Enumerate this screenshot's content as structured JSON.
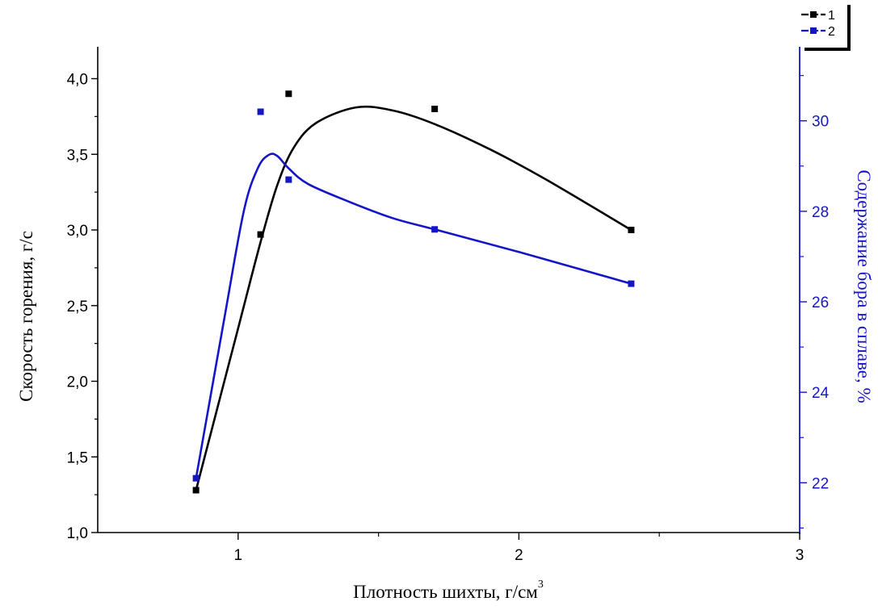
{
  "chart_data": {
    "type": "line",
    "x_title": "Плотность шихты, г/см",
    "x_title_sup": "3",
    "y_title": "Скорость горения, г/с",
    "y2_title": "Содержание бора в сплаве, %",
    "xlim": [
      0.5,
      3
    ],
    "ylim": [
      1.0,
      4.2
    ],
    "y2lim": [
      20.9,
      31.6
    ],
    "x_ticks": [
      1,
      2,
      3
    ],
    "x_tick_labels": [
      "1",
      "2",
      "3"
    ],
    "y_ticks": [
      1.0,
      1.5,
      2.0,
      2.5,
      3.0,
      3.5,
      4.0
    ],
    "y_tick_labels": [
      "1,0",
      "1,5",
      "2,0",
      "2,5",
      "3,0",
      "3,5",
      "4,0"
    ],
    "y2_ticks": [
      22,
      24,
      26,
      28,
      30
    ],
    "y2_tick_labels": [
      "22",
      "24",
      "26",
      "28",
      "30"
    ],
    "legend_position": "top-right",
    "series": [
      {
        "name": "1",
        "axis": "left",
        "color": "#000000",
        "marker": "square",
        "points": [
          {
            "x": 0.85,
            "y": 1.28
          },
          {
            "x": 1.08,
            "y": 2.97
          },
          {
            "x": 1.18,
            "y": 3.9
          },
          {
            "x": 1.7,
            "y": 3.8
          },
          {
            "x": 2.4,
            "y": 3.0
          }
        ],
        "curve": [
          {
            "x": 0.85,
            "y": 1.28
          },
          {
            "x": 1.0,
            "y": 2.35
          },
          {
            "x": 1.08,
            "y": 2.92
          },
          {
            "x": 1.14,
            "y": 3.3
          },
          {
            "x": 1.2,
            "y": 3.55
          },
          {
            "x": 1.28,
            "y": 3.71
          },
          {
            "x": 1.42,
            "y": 3.81
          },
          {
            "x": 1.55,
            "y": 3.79
          },
          {
            "x": 1.7,
            "y": 3.7
          },
          {
            "x": 1.9,
            "y": 3.53
          },
          {
            "x": 2.1,
            "y": 3.33
          },
          {
            "x": 2.4,
            "y": 3.0
          }
        ]
      },
      {
        "name": "2",
        "axis": "right",
        "color": "#1515c8",
        "marker": "square",
        "points": [
          {
            "x": 0.85,
            "y": 22.1
          },
          {
            "x": 1.08,
            "y": 30.2
          },
          {
            "x": 1.18,
            "y": 28.7
          },
          {
            "x": 1.7,
            "y": 27.6
          },
          {
            "x": 2.4,
            "y": 26.4
          }
        ],
        "curve": [
          {
            "x": 0.85,
            "y": 22.1
          },
          {
            "x": 0.95,
            "y": 25.6
          },
          {
            "x": 1.02,
            "y": 28.0
          },
          {
            "x": 1.07,
            "y": 28.95
          },
          {
            "x": 1.11,
            "y": 29.25
          },
          {
            "x": 1.14,
            "y": 29.22
          },
          {
            "x": 1.18,
            "y": 28.95
          },
          {
            "x": 1.25,
            "y": 28.6
          },
          {
            "x": 1.4,
            "y": 28.2
          },
          {
            "x": 1.55,
            "y": 27.85
          },
          {
            "x": 1.7,
            "y": 27.6
          },
          {
            "x": 2.0,
            "y": 27.1
          },
          {
            "x": 2.4,
            "y": 26.4
          }
        ]
      }
    ]
  }
}
